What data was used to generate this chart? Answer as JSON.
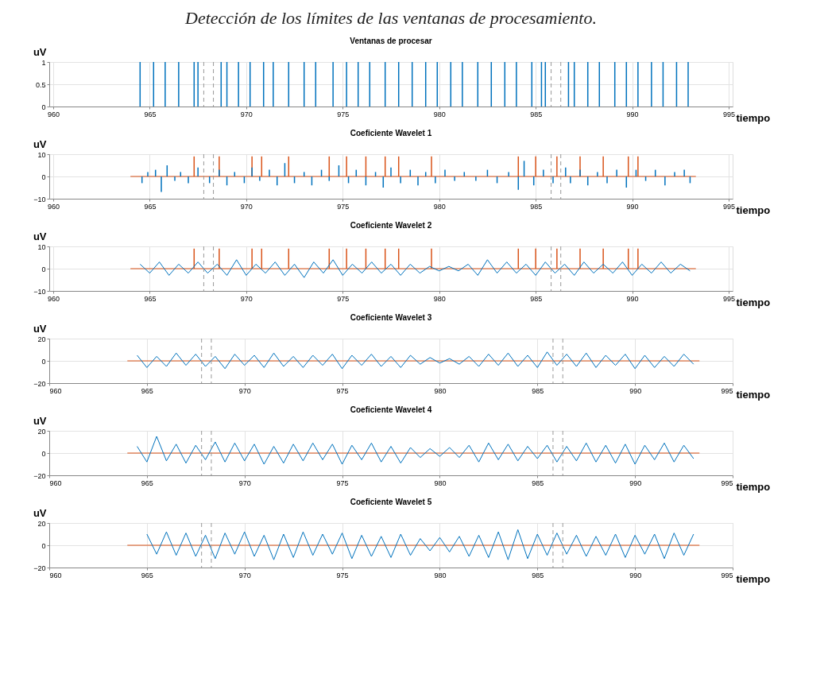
{
  "chart_data": [
    {
      "type": "bar",
      "title": "Ventanas de procesar",
      "xlabel": "tiempo",
      "ylabel": "uV",
      "xlim": [
        960,
        995
      ],
      "xticks": [
        960,
        965,
        970,
        975,
        980,
        985,
        990,
        995
      ],
      "ylim": [
        0,
        1
      ],
      "yticks": [
        0,
        0.5,
        1
      ],
      "grid": true,
      "annotations": [
        "Detección de los límites de las ventanas de procesamiento."
      ],
      "ref_lines": [
        {
          "axis": "x",
          "value": 967.8,
          "line_style": "dashed",
          "color": "#999999"
        },
        {
          "axis": "x",
          "value": 968.3,
          "line_style": "dashed",
          "color": "#999999"
        },
        {
          "axis": "x",
          "value": 985.8,
          "line_style": "dashed",
          "color": "#999999"
        },
        {
          "axis": "x",
          "value": 986.3,
          "line_style": "dashed",
          "color": "#999999"
        }
      ],
      "series": [
        {
          "color": "#0072bd",
          "x": [
            964.5,
            965.2,
            965.8,
            966.5,
            967.3,
            967.5,
            968.7,
            969.0,
            969.6,
            970.2,
            970.9,
            971.4,
            972.2,
            973.0,
            973.6,
            974.5,
            975.2,
            975.8,
            976.4,
            977.2,
            977.9,
            978.6,
            979.3,
            979.9,
            980.6,
            981.2,
            982.0,
            982.7,
            983.4,
            984.0,
            984.8,
            985.3,
            985.5,
            986.7,
            987.0,
            987.7,
            988.3,
            989.1,
            989.7,
            990.3,
            991.0,
            991.6,
            992.3,
            992.9
          ],
          "values": [
            1,
            1,
            1,
            1,
            1,
            1,
            1,
            1,
            1,
            1,
            1,
            1,
            1,
            1,
            1,
            1,
            1,
            1,
            1,
            1,
            1,
            1,
            1,
            1,
            1,
            1,
            1,
            1,
            1,
            1,
            1,
            1,
            1,
            1,
            1,
            1,
            1,
            1,
            1,
            1,
            1,
            1,
            1,
            1
          ]
        }
      ]
    },
    {
      "type": "line",
      "title": "Coeficiente Wavelet 1",
      "xlabel": "tiempo",
      "ylabel": "uV",
      "xlim": [
        960,
        995
      ],
      "xticks": [
        960,
        965,
        970,
        975,
        980,
        985,
        990,
        995
      ],
      "ylim": [
        -10,
        10
      ],
      "yticks": [
        -10,
        0,
        10
      ],
      "grid": true,
      "ref_lines": [
        {
          "axis": "x",
          "value": 967.8,
          "line_style": "dashed",
          "color": "#999999"
        },
        {
          "axis": "x",
          "value": 968.3,
          "line_style": "dashed",
          "color": "#999999"
        },
        {
          "axis": "x",
          "value": 985.8,
          "line_style": "dashed",
          "color": "#999999"
        },
        {
          "axis": "x",
          "value": 986.3,
          "line_style": "dashed",
          "color": "#999999"
        }
      ],
      "series": [
        {
          "type": "line",
          "color": "#d95319",
          "x": [
            964,
            993.3
          ],
          "values": [
            0,
            0
          ]
        },
        {
          "type": "bar",
          "color": "#d95319",
          "x": [
            967.3,
            968.6,
            970.3,
            970.8,
            972.2,
            974.3,
            975.2,
            976.2,
            977.2,
            977.9,
            979.6,
            984.1,
            985.0,
            986.1,
            987.3,
            988.5,
            989.8,
            990.3
          ],
          "values": [
            9,
            9,
            9,
            9,
            9,
            9,
            9,
            9,
            9,
            9,
            9,
            9,
            9,
            9,
            9,
            9,
            9,
            9
          ]
        },
        {
          "type": "bar",
          "color": "#0072bd",
          "x": [
            964.6,
            964.9,
            965.3,
            965.6,
            965.9,
            966.3,
            966.6,
            967.0,
            967.5,
            968.1,
            968.6,
            969.0,
            969.4,
            969.9,
            970.3,
            970.7,
            971.2,
            971.6,
            972.0,
            972.5,
            973.0,
            973.4,
            973.9,
            974.3,
            974.8,
            975.3,
            975.7,
            976.2,
            976.7,
            977.1,
            977.5,
            978.0,
            978.5,
            978.9,
            979.3,
            979.8,
            980.3,
            980.8,
            981.3,
            981.9,
            982.5,
            983.0,
            983.6,
            984.1,
            984.4,
            984.9,
            985.4,
            985.9,
            986.55,
            986.8,
            987.3,
            987.7,
            988.2,
            988.7,
            989.2,
            989.7,
            990.2,
            990.7,
            991.2,
            991.7,
            992.2,
            992.7,
            993.0
          ],
          "values": [
            -3,
            2,
            3,
            -7,
            5,
            -2,
            2,
            -3,
            4,
            -3,
            3,
            -4,
            2,
            -3,
            4,
            -2,
            3,
            -4,
            6,
            -3,
            2,
            -4,
            3,
            -2,
            5,
            -3,
            3,
            -4,
            2,
            -5,
            4,
            -3,
            3,
            -4,
            2,
            -3,
            3,
            -2,
            2,
            -2,
            3,
            -3,
            2,
            -6,
            7,
            -4,
            3,
            -3,
            4,
            -3,
            3,
            -4,
            2,
            -3,
            3,
            -5,
            3,
            -2,
            3,
            -4,
            2,
            3,
            -3
          ]
        }
      ]
    },
    {
      "type": "line",
      "title": "Coeficiente Wavelet 2",
      "xlabel": "tiempo",
      "ylabel": "uV",
      "xlim": [
        960,
        995
      ],
      "xticks": [
        960,
        965,
        970,
        975,
        980,
        985,
        990,
        995
      ],
      "ylim": [
        -10,
        10
      ],
      "yticks": [
        -10,
        0,
        10
      ],
      "grid": true,
      "ref_lines": [
        {
          "axis": "x",
          "value": 967.8,
          "line_style": "dashed",
          "color": "#999999"
        },
        {
          "axis": "x",
          "value": 968.3,
          "line_style": "dashed",
          "color": "#999999"
        },
        {
          "axis": "x",
          "value": 985.8,
          "line_style": "dashed",
          "color": "#999999"
        },
        {
          "axis": "x",
          "value": 986.3,
          "line_style": "dashed",
          "color": "#999999"
        }
      ],
      "series": [
        {
          "type": "line",
          "color": "#d95319",
          "x": [
            964,
            993.3
          ],
          "values": [
            0,
            0
          ]
        },
        {
          "type": "bar",
          "color": "#d95319",
          "x": [
            967.3,
            968.6,
            970.3,
            970.8,
            972.2,
            974.3,
            975.2,
            976.2,
            977.2,
            977.9,
            979.6,
            984.1,
            985.0,
            986.1,
            987.3,
            988.5,
            989.8,
            990.3
          ],
          "values": [
            9,
            9,
            9,
            9,
            9,
            9,
            9,
            9,
            9,
            9,
            9,
            9,
            9,
            9,
            9,
            9,
            9,
            9
          ]
        },
        {
          "type": "line",
          "color": "#0072bd",
          "x": [
            964.5,
            965,
            965.5,
            966,
            966.5,
            967,
            967.5,
            968,
            968.5,
            969,
            969.5,
            970,
            970.5,
            971,
            971.5,
            972,
            972.5,
            973,
            973.5,
            974,
            974.5,
            975,
            975.5,
            976,
            976.5,
            977,
            977.5,
            978,
            978.5,
            979,
            979.5,
            980,
            980.5,
            981,
            981.5,
            982,
            982.5,
            983,
            983.5,
            984,
            984.5,
            985,
            985.5,
            986,
            986.5,
            987,
            987.5,
            988,
            988.5,
            989,
            989.5,
            990,
            990.5,
            991,
            991.5,
            992,
            992.5,
            993
          ],
          "values": [
            2,
            -2,
            3,
            -3,
            2,
            -2,
            3,
            -2,
            2,
            -3,
            4,
            -3,
            2,
            -2,
            3,
            -3,
            2,
            -4,
            3,
            -2,
            4,
            -3,
            2,
            -2,
            3,
            -2,
            2,
            -3,
            2,
            -2,
            1,
            -1,
            1,
            -1,
            2,
            -3,
            4,
            -2,
            3,
            -2,
            2,
            -3,
            3,
            -2,
            2,
            -3,
            3,
            -2,
            2,
            -2,
            3,
            -3,
            2,
            -2,
            3,
            -2,
            2,
            -1
          ]
        }
      ]
    },
    {
      "type": "line",
      "title": "Coeficiente Wavelet 3",
      "xlabel": "tiempo",
      "ylabel": "uV",
      "xlim": [
        960,
        995
      ],
      "xticks": [
        960,
        965,
        970,
        975,
        980,
        985,
        990,
        995
      ],
      "ylim": [
        -20,
        20
      ],
      "yticks": [
        -20,
        0,
        20
      ],
      "grid": true,
      "ref_lines": [
        {
          "axis": "x",
          "value": 967.8,
          "line_style": "dashed",
          "color": "#999999"
        },
        {
          "axis": "x",
          "value": 968.3,
          "line_style": "dashed",
          "color": "#999999"
        },
        {
          "axis": "x",
          "value": 985.8,
          "line_style": "dashed",
          "color": "#999999"
        },
        {
          "axis": "x",
          "value": 986.3,
          "line_style": "dashed",
          "color": "#999999"
        }
      ],
      "series": [
        {
          "type": "line",
          "color": "#d95319",
          "x": [
            964,
            993.3
          ],
          "values": [
            0,
            0
          ]
        },
        {
          "type": "line",
          "color": "#0072bd",
          "x": [
            964.5,
            965,
            965.5,
            966,
            966.5,
            967,
            967.5,
            968,
            968.5,
            969,
            969.5,
            970,
            970.5,
            971,
            971.5,
            972,
            972.5,
            973,
            973.5,
            974,
            974.5,
            975,
            975.5,
            976,
            976.5,
            977,
            977.5,
            978,
            978.5,
            979,
            979.5,
            980,
            980.5,
            981,
            981.5,
            982,
            982.5,
            983,
            983.5,
            984,
            984.5,
            985,
            985.5,
            986,
            986.5,
            987,
            987.5,
            988,
            988.5,
            989,
            989.5,
            990,
            990.5,
            991,
            991.5,
            992,
            992.5,
            993
          ],
          "values": [
            5,
            -6,
            4,
            -5,
            7,
            -4,
            6,
            -5,
            4,
            -7,
            6,
            -4,
            5,
            -6,
            7,
            -5,
            4,
            -6,
            5,
            -4,
            6,
            -7,
            5,
            -4,
            6,
            -5,
            4,
            -6,
            5,
            -3,
            3,
            -2,
            2,
            -3,
            4,
            -5,
            6,
            -4,
            7,
            -5,
            5,
            -6,
            8,
            -4,
            6,
            -5,
            7,
            -6,
            5,
            -4,
            6,
            -7,
            5,
            -6,
            4,
            -5,
            6,
            -3
          ]
        }
      ]
    },
    {
      "type": "line",
      "title": "Coeficiente Wavelet 4",
      "xlabel": "tiempo",
      "ylabel": "uV",
      "xlim": [
        960,
        995
      ],
      "xticks": [
        960,
        965,
        970,
        975,
        980,
        985,
        990,
        995
      ],
      "ylim": [
        -20,
        20
      ],
      "yticks": [
        -20,
        0,
        20
      ],
      "grid": true,
      "ref_lines": [
        {
          "axis": "x",
          "value": 967.8,
          "line_style": "dashed",
          "color": "#999999"
        },
        {
          "axis": "x",
          "value": 968.3,
          "line_style": "dashed",
          "color": "#999999"
        },
        {
          "axis": "x",
          "value": 985.8,
          "line_style": "dashed",
          "color": "#999999"
        },
        {
          "axis": "x",
          "value": 986.3,
          "line_style": "dashed",
          "color": "#999999"
        }
      ],
      "series": [
        {
          "type": "line",
          "color": "#d95319",
          "x": [
            964,
            993.3
          ],
          "values": [
            0,
            0
          ]
        },
        {
          "type": "line",
          "color": "#0072bd",
          "x": [
            964.5,
            965,
            965.5,
            966,
            966.5,
            967,
            967.5,
            968,
            968.5,
            969,
            969.5,
            970,
            970.5,
            971,
            971.5,
            972,
            972.5,
            973,
            973.5,
            974,
            974.5,
            975,
            975.5,
            976,
            976.5,
            977,
            977.5,
            978,
            978.5,
            979,
            979.5,
            980,
            980.5,
            981,
            981.5,
            982,
            982.5,
            983,
            983.5,
            984,
            984.5,
            985,
            985.5,
            986,
            986.5,
            987,
            987.5,
            988,
            988.5,
            989,
            989.5,
            990,
            990.5,
            991,
            991.5,
            992,
            992.5,
            993
          ],
          "values": [
            6,
            -8,
            15,
            -7,
            8,
            -9,
            7,
            -6,
            10,
            -8,
            9,
            -7,
            8,
            -10,
            6,
            -9,
            8,
            -7,
            9,
            -6,
            8,
            -10,
            7,
            -6,
            9,
            -8,
            6,
            -9,
            5,
            -4,
            4,
            -3,
            5,
            -4,
            7,
            -8,
            9,
            -6,
            8,
            -7,
            6,
            -5,
            7,
            -8,
            6,
            -7,
            9,
            -8,
            7,
            -9,
            8,
            -10,
            7,
            -6,
            9,
            -8,
            7,
            -5
          ]
        }
      ]
    },
    {
      "type": "line",
      "title": "Coeficiente Wavelet 5",
      "xlabel": "tiempo",
      "ylabel": "uV",
      "xlim": [
        960,
        995
      ],
      "xticks": [
        960,
        965,
        970,
        975,
        980,
        985,
        990,
        995
      ],
      "ylim": [
        -20,
        20
      ],
      "yticks": [
        -20,
        0,
        20
      ],
      "grid": true,
      "ref_lines": [
        {
          "axis": "x",
          "value": 967.8,
          "line_style": "dashed",
          "color": "#999999"
        },
        {
          "axis": "x",
          "value": 968.3,
          "line_style": "dashed",
          "color": "#999999"
        },
        {
          "axis": "x",
          "value": 985.8,
          "line_style": "dashed",
          "color": "#999999"
        },
        {
          "axis": "x",
          "value": 986.3,
          "line_style": "dashed",
          "color": "#999999"
        }
      ],
      "series": [
        {
          "type": "line",
          "color": "#d95319",
          "x": [
            964,
            993.3
          ],
          "values": [
            0,
            0
          ]
        },
        {
          "type": "line",
          "color": "#0072bd",
          "x": [
            965,
            965.5,
            966,
            966.5,
            967,
            967.5,
            968,
            968.5,
            969,
            969.5,
            970,
            970.5,
            971,
            971.5,
            972,
            972.5,
            973,
            973.5,
            974,
            974.5,
            975,
            975.5,
            976,
            976.5,
            977,
            977.5,
            978,
            978.5,
            979,
            979.5,
            980,
            980.5,
            981,
            981.5,
            982,
            982.5,
            983,
            983.5,
            984,
            984.5,
            985,
            985.5,
            986,
            986.5,
            987,
            987.5,
            988,
            988.5,
            989,
            989.5,
            990,
            990.5,
            991,
            991.5,
            992,
            992.5,
            993
          ],
          "values": [
            10,
            -8,
            12,
            -9,
            11,
            -10,
            9,
            -12,
            11,
            -8,
            12,
            -10,
            9,
            -13,
            10,
            -11,
            12,
            -9,
            10,
            -8,
            11,
            -12,
            9,
            -10,
            8,
            -11,
            10,
            -9,
            6,
            -5,
            7,
            -6,
            8,
            -10,
            9,
            -11,
            12,
            -13,
            14,
            -12,
            10,
            -9,
            11,
            -8,
            9,
            -10,
            8,
            -9,
            10,
            -11,
            9,
            -8,
            10,
            -12,
            11,
            -9,
            10
          ]
        }
      ]
    }
  ]
}
